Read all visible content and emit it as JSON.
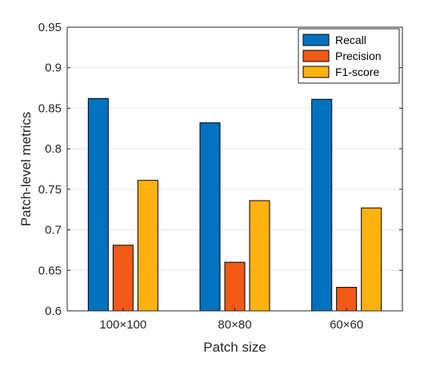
{
  "chart_data": {
    "type": "bar",
    "title": "",
    "xlabel": "Patch size",
    "ylabel": "Patch-level metrics",
    "categories": [
      "100×100",
      "80×80",
      "60×60"
    ],
    "ylim": [
      0.6,
      0.95
    ],
    "yticks": [
      "0.6",
      "0.65",
      "0.7",
      "0.75",
      "0.8",
      "0.85",
      "0.9",
      "0.95"
    ],
    "grid": true,
    "legend_position": "top-right",
    "series": [
      {
        "name": "Recall",
        "color": "#0072BD",
        "values": [
          0.862,
          0.832,
          0.861
        ]
      },
      {
        "name": "Precision",
        "color": "#F25A16",
        "values": [
          0.681,
          0.66,
          0.629
        ]
      },
      {
        "name": "F1-score",
        "color": "#FFB20F",
        "values": [
          0.761,
          0.736,
          0.727
        ]
      }
    ]
  }
}
